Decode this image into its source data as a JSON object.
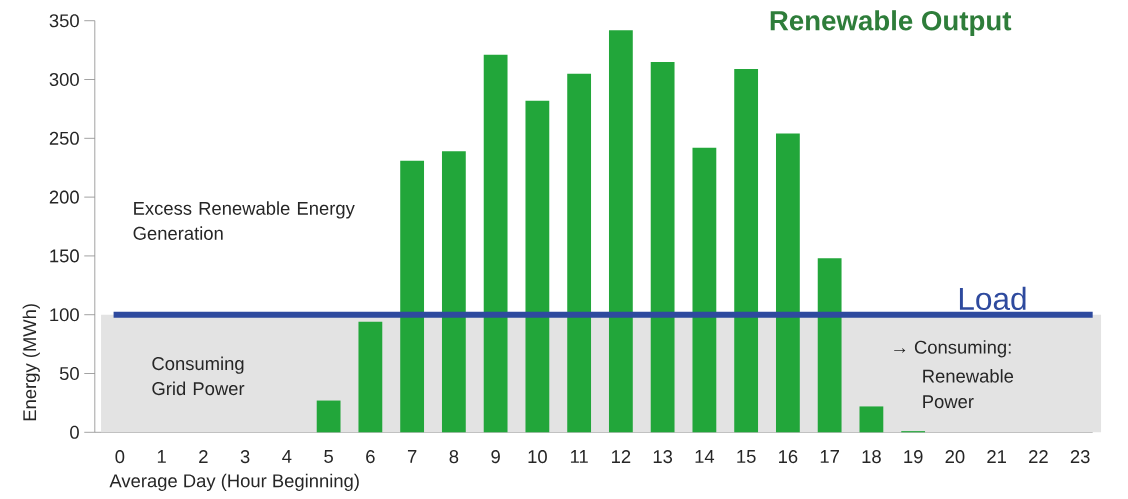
{
  "chart_data": {
    "type": "bar",
    "title": "Renewable Output",
    "xlabel": "Average Day (Hour Beginning)",
    "ylabel": "Energy (MWh)",
    "categories": [
      "0",
      "1",
      "2",
      "3",
      "4",
      "5",
      "6",
      "7",
      "8",
      "9",
      "10",
      "11",
      "12",
      "13",
      "14",
      "15",
      "16",
      "17",
      "18",
      "19",
      "20",
      "21",
      "22",
      "23"
    ],
    "values": [
      0,
      0,
      0,
      0,
      0,
      27,
      94,
      231,
      239,
      321,
      282,
      305,
      342,
      315,
      242,
      309,
      254,
      148,
      22,
      1,
      0,
      0,
      0,
      0
    ],
    "color": "#22a63a",
    "ylim": [
      0,
      350
    ],
    "yticks": [
      0,
      50,
      100,
      150,
      200,
      250,
      300,
      350
    ],
    "ref_lines": [
      {
        "axis": "y",
        "value": 100,
        "label": "Load",
        "color": "#2e4a9e"
      }
    ],
    "bands": [
      {
        "axis": "y",
        "from": 0,
        "to": 100,
        "color": "#e3e3e3"
      }
    ],
    "annotations": [
      "Excess Renewable Energy Generation",
      "Consuming Grid Power",
      "→ Consuming:",
      "Renewable",
      "Power"
    ]
  }
}
